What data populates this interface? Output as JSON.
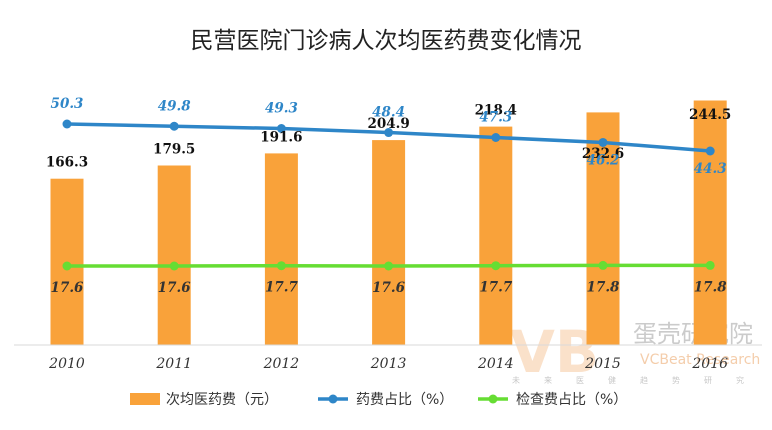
{
  "chart_data": {
    "type": "bar",
    "title": "民营医院门诊病人次均医药费变化情况",
    "categories": [
      "2010",
      "2011",
      "2012",
      "2013",
      "2014",
      "2015",
      "2016"
    ],
    "series": [
      {
        "name": "次均医药费（元）",
        "kind": "bar",
        "color": "#f9a23a",
        "values": [
          166.3,
          179.5,
          191.6,
          204.9,
          218.4,
          232.6,
          244.5
        ]
      },
      {
        "name": "药费占比（%）",
        "kind": "line",
        "color": "#2e86c8",
        "values": [
          50.3,
          49.8,
          49.3,
          48.4,
          47.3,
          46.2,
          44.3
        ]
      },
      {
        "name": "检查费占比（%）",
        "kind": "line",
        "color": "#66dd33",
        "values": [
          17.6,
          17.6,
          17.7,
          17.6,
          17.7,
          17.8,
          17.8
        ]
      }
    ],
    "legend_position": "bottom",
    "grid": false
  },
  "watermark": {
    "logo": "VB",
    "name_cn": "蛋壳研究院",
    "name_en": "VCBeat Research",
    "tagline": [
      "未",
      "来",
      "医",
      "健",
      "趋",
      "势",
      "研",
      "究"
    ]
  }
}
